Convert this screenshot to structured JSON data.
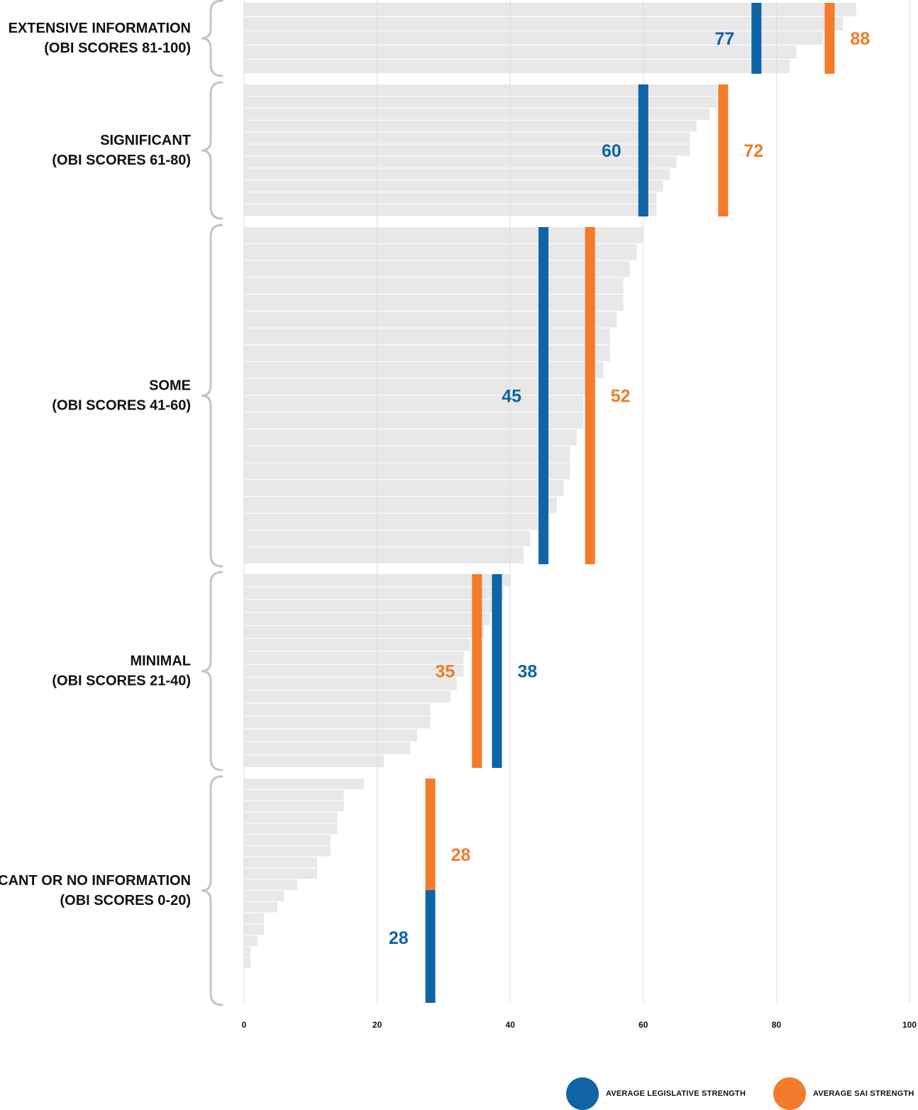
{
  "chart_data": {
    "type": "bar",
    "xlim": [
      0,
      100
    ],
    "x_ticks": [
      "0",
      "20",
      "40",
      "60",
      "80",
      "100"
    ],
    "grid": true,
    "legend_position": "bottom-right",
    "colors": {
      "legislative": "#0f64a6",
      "sai": "#f37b2a",
      "bar": "#e8e8e8",
      "grid": "#dddddd",
      "brace": "#c4c4c4"
    },
    "legend": [
      {
        "name": "AVERAGE LEGISLATIVE STRENGTH",
        "color": "#0f64a6"
      },
      {
        "name": "AVERAGE SAI STRENGTH",
        "color": "#f37b2a"
      }
    ],
    "groups": [
      {
        "label": [
          "EXTENSIVE INFORMATION",
          "(OBI SCORES 81-100)"
        ],
        "scores": [
          92,
          90,
          87,
          83,
          82
        ],
        "legislative": 77,
        "sai": 88
      },
      {
        "label": [
          "SIGNIFICANT",
          "(OBI SCORES 61-80)"
        ],
        "scores": [
          71,
          71,
          70,
          68,
          67,
          67,
          65,
          64,
          63,
          62,
          62
        ],
        "legislative": 60,
        "sai": 72
      },
      {
        "label": [
          "SOME",
          "(OBI SCORES 41-60)"
        ],
        "scores": [
          60,
          59,
          58,
          57,
          57,
          56,
          55,
          55,
          54,
          52,
          51,
          51,
          50,
          49,
          49,
          48,
          47,
          45,
          43,
          42
        ],
        "legislative": 45,
        "sai": 52
      },
      {
        "label": [
          "MINIMAL",
          "(OBI SCORES 21-40)"
        ],
        "scores": [
          40,
          39,
          38,
          37,
          36,
          34,
          33,
          33,
          32,
          31,
          28,
          28,
          26,
          25,
          21
        ],
        "legislative": 38,
        "sai": 35
      },
      {
        "label": [
          "SCANT OR NO INFORMATION",
          "(OBI SCORES 0-20)"
        ],
        "scores": [
          18,
          15,
          15,
          14,
          14,
          13,
          13,
          11,
          11,
          8,
          6,
          5,
          3,
          3,
          2,
          1,
          1,
          0,
          0,
          0
        ],
        "legislative": 28,
        "sai": 28
      }
    ]
  }
}
